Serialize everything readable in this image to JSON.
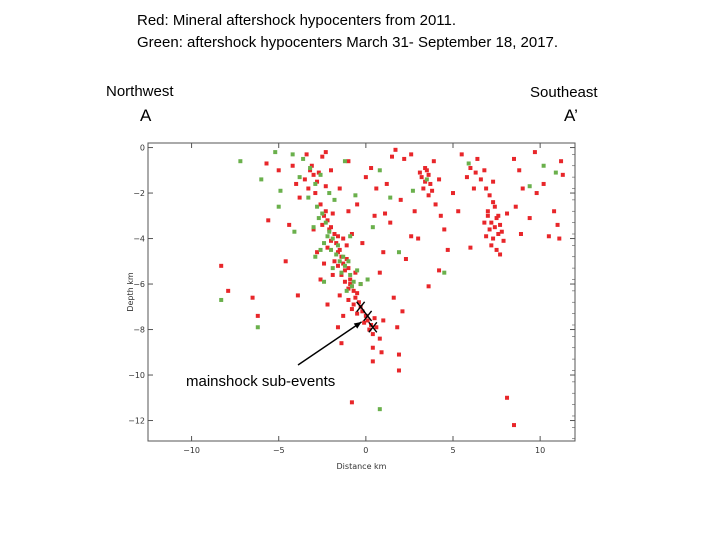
{
  "caption": {
    "line1": "Red: Mineral aftershock hypocenters from 2011.",
    "line2": "Green: aftershock hypocenters March 31- September 18, 2017."
  },
  "profile": {
    "left_direction": "Northwest",
    "right_direction": "Southeast",
    "left_end": "A",
    "right_end": "A’"
  },
  "colors": {
    "series_2011": "#e8262a",
    "series_2017": "#6ab04c",
    "frame": "#555555",
    "mainshock": "#000000"
  },
  "chart_data": {
    "type": "scatter",
    "xlabel": "Distance km",
    "ylabel": "Depth km",
    "xlim": [
      -12.5,
      12
    ],
    "ylim": [
      -12.9,
      0.2
    ],
    "xticks": [
      -10,
      -5,
      0,
      5,
      10
    ],
    "yticks": [
      0,
      -2,
      -4,
      -6,
      -8,
      -10,
      -12
    ],
    "series": [
      {
        "points": [
          [
            -3.4,
            -0.3
          ],
          [
            -3.1,
            -0.8
          ],
          [
            -3.0,
            -1.2
          ],
          [
            -2.8,
            -1.5
          ],
          [
            -3.2,
            -1.0
          ],
          [
            -2.5,
            -0.4
          ],
          [
            -3.5,
            -1.4
          ],
          [
            -2.9,
            -2.0
          ],
          [
            -3.3,
            -1.8
          ],
          [
            -2.7,
            -1.1
          ],
          [
            -2.6,
            -2.5
          ],
          [
            -2.3,
            -2.8
          ],
          [
            -2.2,
            -3.2
          ],
          [
            -2.0,
            -3.5
          ],
          [
            -1.8,
            -3.8
          ],
          [
            -2.4,
            -3.0
          ],
          [
            -1.9,
            -2.9
          ],
          [
            -2.1,
            -3.6
          ],
          [
            -1.6,
            -3.9
          ],
          [
            -2.5,
            -3.4
          ],
          [
            -1.7,
            -4.2
          ],
          [
            -1.5,
            -4.5
          ],
          [
            -1.4,
            -4.8
          ],
          [
            -1.3,
            -5.1
          ],
          [
            -1.2,
            -5.4
          ],
          [
            -1.6,
            -4.6
          ],
          [
            -1.1,
            -4.9
          ],
          [
            -1.8,
            -5.0
          ],
          [
            -1.0,
            -5.3
          ],
          [
            -1.4,
            -5.6
          ],
          [
            -0.9,
            -5.8
          ],
          [
            -0.8,
            -6.1
          ],
          [
            -0.7,
            -6.3
          ],
          [
            -0.6,
            -6.6
          ],
          [
            -1.2,
            -5.9
          ],
          [
            -0.5,
            -6.4
          ],
          [
            -0.9,
            -6.0
          ],
          [
            -0.4,
            -6.8
          ],
          [
            -0.7,
            -6.9
          ],
          [
            -1.0,
            -6.2
          ],
          [
            -0.3,
            -7.0
          ],
          [
            -0.2,
            -7.2
          ],
          [
            0.0,
            -7.4
          ],
          [
            0.1,
            -7.6
          ],
          [
            0.3,
            -7.8
          ],
          [
            0.2,
            -8.0
          ],
          [
            0.4,
            -8.2
          ],
          [
            -0.1,
            -7.7
          ],
          [
            0.5,
            -7.5
          ],
          [
            0.6,
            -7.9
          ],
          [
            -1.3,
            -4.0
          ],
          [
            -1.6,
            -5.2
          ],
          [
            -0.6,
            -5.5
          ],
          [
            -2.2,
            -4.4
          ],
          [
            -0.3,
            -6.0
          ],
          [
            -1.1,
            -4.3
          ],
          [
            -2.0,
            -4.1
          ],
          [
            -1.9,
            -5.6
          ],
          [
            -0.8,
            -7.1
          ],
          [
            -0.5,
            -7.3
          ],
          [
            -3.0,
            -3.6
          ],
          [
            -2.8,
            -4.6
          ],
          [
            -2.4,
            -5.1
          ],
          [
            -1.5,
            -6.5
          ],
          [
            -1.0,
            -6.7
          ],
          [
            0.8,
            -8.4
          ],
          [
            0.4,
            -8.8
          ],
          [
            1.0,
            -7.6
          ],
          [
            1.6,
            -6.6
          ],
          [
            1.8,
            -7.9
          ],
          [
            -4.2,
            -0.8
          ],
          [
            -4.0,
            -1.6
          ],
          [
            -3.8,
            -2.2
          ],
          [
            -4.4,
            -3.4
          ],
          [
            -5.0,
            -1.0
          ],
          [
            -5.6,
            -3.2
          ],
          [
            -2.6,
            -5.8
          ],
          [
            -1.3,
            -7.4
          ],
          [
            0.9,
            -9.0
          ],
          [
            1.9,
            -9.8
          ],
          [
            -1.5,
            -1.8
          ],
          [
            -1.0,
            -0.6
          ],
          [
            -0.5,
            -2.5
          ],
          [
            0.0,
            -1.3
          ],
          [
            0.5,
            -3.0
          ],
          [
            1.2,
            -1.6
          ],
          [
            -0.8,
            -3.8
          ],
          [
            1.0,
            -4.6
          ],
          [
            1.5,
            -0.4
          ],
          [
            2.0,
            -2.3
          ],
          [
            -2.0,
            -1.0
          ],
          [
            -1.0,
            -2.8
          ],
          [
            0.6,
            -1.8
          ],
          [
            0.3,
            -0.9
          ],
          [
            -2.3,
            -1.7
          ],
          [
            1.4,
            -3.3
          ],
          [
            -0.2,
            -4.2
          ],
          [
            2.3,
            -4.9
          ],
          [
            0.8,
            -5.5
          ],
          [
            2.6,
            -3.9
          ],
          [
            3.2,
            -1.3
          ],
          [
            3.4,
            -1.5
          ],
          [
            3.6,
            -1.2
          ],
          [
            3.3,
            -1.8
          ],
          [
            3.5,
            -1.0
          ],
          [
            3.7,
            -1.6
          ],
          [
            3.1,
            -1.1
          ],
          [
            3.8,
            -1.9
          ],
          [
            3.4,
            -0.9
          ],
          [
            3.6,
            -2.1
          ],
          [
            4.0,
            -2.5
          ],
          [
            4.3,
            -3.0
          ],
          [
            4.5,
            -3.6
          ],
          [
            2.8,
            -2.8
          ],
          [
            3.0,
            -4.0
          ],
          [
            2.6,
            -0.3
          ],
          [
            4.2,
            -1.4
          ],
          [
            4.7,
            -4.5
          ],
          [
            3.9,
            -0.6
          ],
          [
            5.0,
            -2.0
          ],
          [
            6.0,
            -0.9
          ],
          [
            6.3,
            -1.1
          ],
          [
            6.6,
            -1.4
          ],
          [
            6.9,
            -1.8
          ],
          [
            7.1,
            -2.1
          ],
          [
            6.4,
            -0.5
          ],
          [
            6.8,
            -1.0
          ],
          [
            7.3,
            -1.5
          ],
          [
            6.2,
            -1.8
          ],
          [
            5.8,
            -1.3
          ],
          [
            7.0,
            -3.0
          ],
          [
            7.2,
            -3.3
          ],
          [
            7.4,
            -3.5
          ],
          [
            7.6,
            -3.8
          ],
          [
            7.1,
            -3.6
          ],
          [
            7.5,
            -3.1
          ],
          [
            7.3,
            -4.0
          ],
          [
            7.7,
            -3.4
          ],
          [
            6.9,
            -3.9
          ],
          [
            7.8,
            -3.7
          ],
          [
            7.0,
            -2.8
          ],
          [
            7.4,
            -2.6
          ],
          [
            7.6,
            -3.0
          ],
          [
            7.2,
            -4.3
          ],
          [
            7.5,
            -4.5
          ],
          [
            6.8,
            -3.3
          ],
          [
            7.9,
            -4.1
          ],
          [
            7.3,
            -2.4
          ],
          [
            8.1,
            -2.9
          ],
          [
            7.7,
            -4.7
          ],
          [
            8.5,
            -0.5
          ],
          [
            8.8,
            -1.0
          ],
          [
            9.0,
            -1.8
          ],
          [
            8.6,
            -2.6
          ],
          [
            9.4,
            -3.1
          ],
          [
            8.9,
            -3.8
          ],
          [
            9.8,
            -2.0
          ],
          [
            5.5,
            -0.3
          ],
          [
            5.3,
            -2.8
          ],
          [
            6.0,
            -4.4
          ],
          [
            10.8,
            -2.8
          ],
          [
            11.2,
            -0.6
          ],
          [
            11.3,
            -1.2
          ],
          [
            10.5,
            -3.9
          ],
          [
            11.1,
            -4.0
          ],
          [
            9.7,
            -0.2
          ],
          [
            10.2,
            -1.6
          ],
          [
            11.0,
            -3.4
          ],
          [
            2.2,
            -0.5
          ],
          [
            1.7,
            -0.1
          ],
          [
            -8.3,
            -5.2
          ],
          [
            -7.9,
            -6.3
          ],
          [
            -6.5,
            -6.6
          ],
          [
            -6.2,
            -7.4
          ],
          [
            -4.6,
            -5.0
          ],
          [
            -3.9,
            -6.5
          ],
          [
            -1.6,
            -7.9
          ],
          [
            1.9,
            -9.1
          ],
          [
            2.1,
            -7.2
          ],
          [
            -2.3,
            -0.2
          ],
          [
            -0.8,
            -11.2
          ],
          [
            8.1,
            -11.0
          ],
          [
            8.5,
            -12.2
          ],
          [
            0.4,
            -9.4
          ],
          [
            -1.4,
            -8.6
          ],
          [
            -2.2,
            -6.9
          ],
          [
            4.2,
            -5.4
          ],
          [
            3.6,
            -6.1
          ],
          [
            -5.7,
            -0.7
          ],
          [
            1.1,
            -2.9
          ]
        ]
      },
      {
        "points": [
          [
            -7.2,
            -0.6
          ],
          [
            -6.0,
            -1.4
          ],
          [
            -5.2,
            -0.2
          ],
          [
            -4.9,
            -1.9
          ],
          [
            -4.2,
            -0.3
          ],
          [
            -3.8,
            -1.3
          ],
          [
            -3.2,
            -0.9
          ],
          [
            -2.9,
            -1.6
          ],
          [
            -2.6,
            -1.2
          ],
          [
            -3.6,
            -0.5
          ],
          [
            -2.8,
            -2.6
          ],
          [
            -2.5,
            -2.9
          ],
          [
            -2.3,
            -3.3
          ],
          [
            -2.1,
            -3.7
          ],
          [
            -1.9,
            -4.0
          ],
          [
            -2.7,
            -3.1
          ],
          [
            -2.4,
            -4.2
          ],
          [
            -2.0,
            -4.5
          ],
          [
            -1.7,
            -4.7
          ],
          [
            -1.5,
            -5.0
          ],
          [
            -1.6,
            -4.3
          ],
          [
            -1.3,
            -4.8
          ],
          [
            -1.2,
            -5.2
          ],
          [
            -0.9,
            -5.6
          ],
          [
            -0.7,
            -5.9
          ],
          [
            -1.4,
            -5.5
          ],
          [
            -1.0,
            -5.0
          ],
          [
            -0.8,
            -6.1
          ],
          [
            -1.1,
            -6.3
          ],
          [
            -2.2,
            -3.9
          ],
          [
            -3.0,
            -3.5
          ],
          [
            -2.6,
            -4.5
          ],
          [
            -0.5,
            -5.4
          ],
          [
            -0.3,
            -6.0
          ],
          [
            -1.8,
            -2.3
          ],
          [
            -2.1,
            -2.0
          ],
          [
            -0.9,
            -3.9
          ],
          [
            0.1,
            -5.8
          ],
          [
            -1.9,
            -5.3
          ],
          [
            -2.9,
            -4.8
          ],
          [
            -4.1,
            -3.7
          ],
          [
            -0.6,
            -2.1
          ],
          [
            0.4,
            -3.5
          ],
          [
            1.9,
            -4.6
          ],
          [
            2.7,
            -1.9
          ],
          [
            3.5,
            -1.4
          ],
          [
            5.9,
            -0.7
          ],
          [
            9.4,
            -1.7
          ],
          [
            10.2,
            -0.8
          ],
          [
            10.9,
            -1.1
          ],
          [
            4.5,
            -5.5
          ],
          [
            -8.3,
            -6.7
          ],
          [
            -6.2,
            -7.9
          ],
          [
            0.8,
            -11.5
          ],
          [
            -5.0,
            -2.6
          ],
          [
            -3.3,
            -2.2
          ],
          [
            -1.2,
            -0.6
          ],
          [
            0.8,
            -1.0
          ],
          [
            1.4,
            -2.2
          ],
          [
            -2.4,
            -5.9
          ]
        ]
      }
    ],
    "mainshock_subevents": [
      [
        -0.3,
        -7.0
      ],
      [
        0.1,
        -7.4
      ],
      [
        0.4,
        -7.9
      ]
    ],
    "annotation": {
      "text": "mainshock sub-events"
    }
  }
}
